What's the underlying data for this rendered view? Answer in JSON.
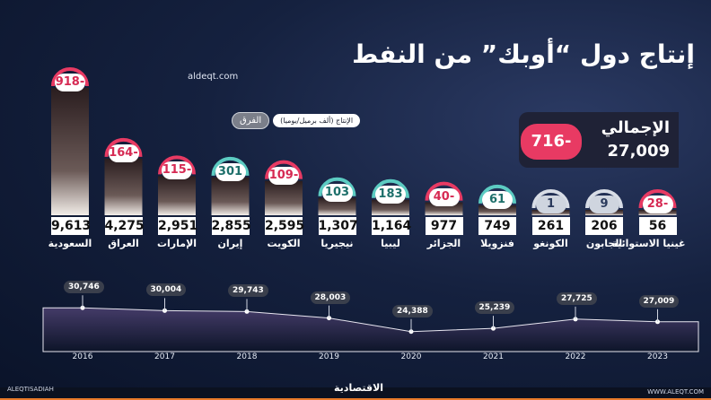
{
  "header": {
    "title": "إنتاج دول “أوبك” من النفط",
    "site": "aldeqt.com"
  },
  "legend": {
    "diff_label": "الفرق",
    "production_label": "الإنتاج (ألف برميل/يوميا)"
  },
  "total": {
    "label": "الإجمالي",
    "value": "27,009",
    "diff": "716-"
  },
  "footer": {
    "brand": "الاقتصادية",
    "site": "WWW.ALEQT.COM",
    "social": "ALEQTISADIAH"
  },
  "colors": {
    "negative": "#e83a63",
    "positive": "#5ccbc2",
    "neutral": "#d8dde6"
  },
  "chart_data": [
    {
      "type": "bar",
      "title": "",
      "categories": [
        "السعودية",
        "العراق",
        "الإمارات",
        "إيران",
        "الكويت",
        "نيجيريا",
        "ليبيا",
        "الجزائر",
        "فنزويلا",
        "الكونغو",
        "الجابون",
        "غينيا الاستوائية"
      ],
      "values": [
        9613,
        4275,
        2951,
        2855,
        2595,
        1307,
        1164,
        977,
        749,
        261,
        206,
        56
      ],
      "value_labels": [
        "9,613",
        "4,275",
        "2,951",
        "2,855",
        "2,595",
        "1,307",
        "1,164",
        "977",
        "749",
        "261",
        "206",
        "56"
      ],
      "diff_labels": [
        "918-",
        "164-",
        "115-",
        "301",
        "109-",
        "103",
        "183",
        "40-",
        "61",
        "1",
        "9",
        "28-"
      ],
      "diff_kind": [
        "neg",
        "neg",
        "neg",
        "pos",
        "neg",
        "pos",
        "pos",
        "neg",
        "pos",
        "neu",
        "neu",
        "neg"
      ]
    },
    {
      "type": "area",
      "x": [
        "2016",
        "2017",
        "2018",
        "2019",
        "2020",
        "2021",
        "2022",
        "2023"
      ],
      "values": [
        30746,
        30004,
        29743,
        28003,
        24388,
        25239,
        27725,
        27009
      ],
      "value_labels": [
        "30,746",
        "30,004",
        "29,743",
        "28,003",
        "24,388",
        "25,239",
        "27,725",
        "27,009"
      ],
      "ylim": [
        20000,
        32000
      ]
    }
  ]
}
